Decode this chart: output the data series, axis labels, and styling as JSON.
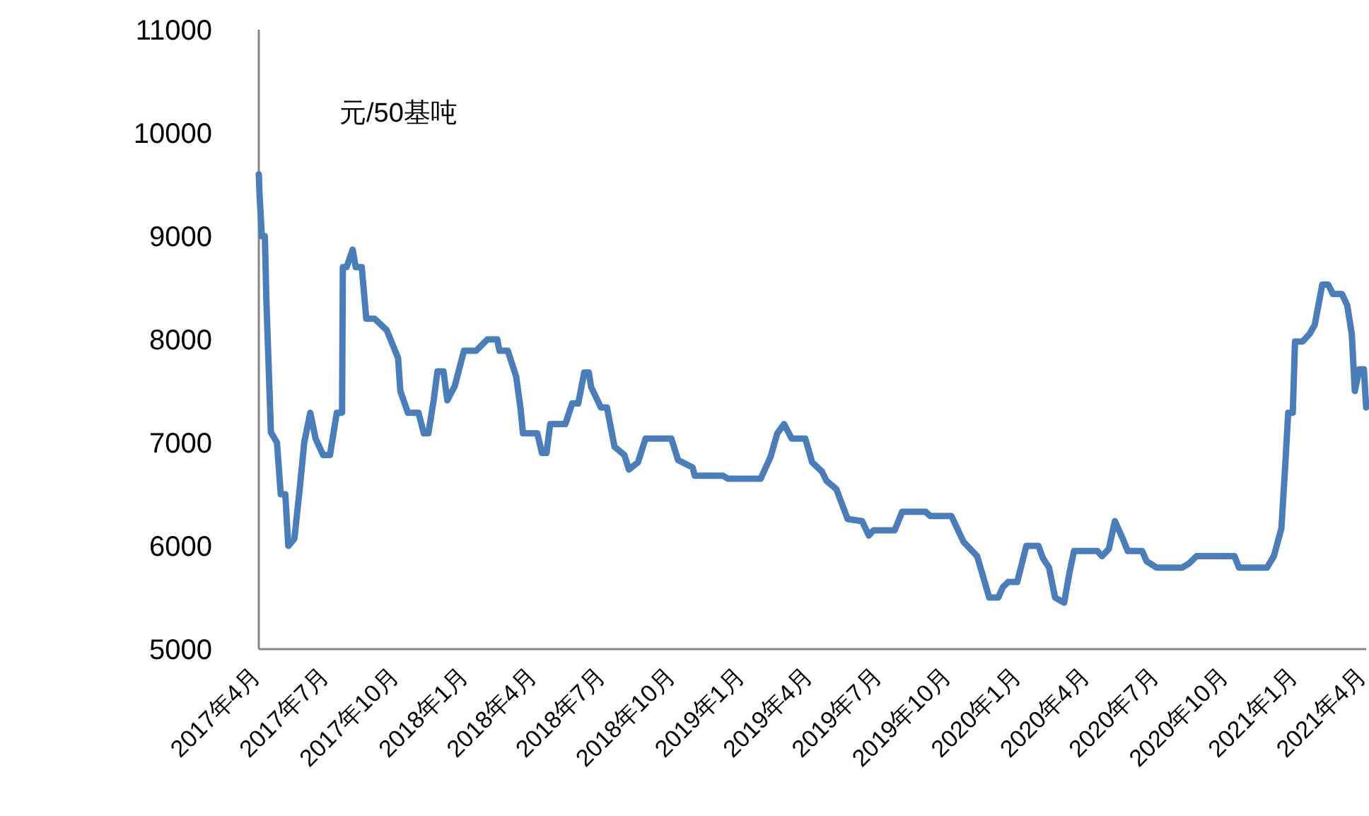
{
  "chart_data": {
    "type": "line",
    "ylabel": "元/50基吨",
    "xlim": [
      "2017-04-01",
      "2021-04-03"
    ],
    "ylim": [
      5000,
      11000
    ],
    "yticks": [
      5000,
      6000,
      7000,
      8000,
      9000,
      10000,
      11000
    ],
    "xticks": [
      {
        "value": "2017-04-01",
        "label": "2017年4月"
      },
      {
        "value": "2017-07-01",
        "label": "2017年7月"
      },
      {
        "value": "2017-10-01",
        "label": "2017年10月"
      },
      {
        "value": "2018-01-01",
        "label": "2018年1月"
      },
      {
        "value": "2018-04-01",
        "label": "2018年4月"
      },
      {
        "value": "2018-07-01",
        "label": "2018年7月"
      },
      {
        "value": "2018-10-01",
        "label": "2018年10月"
      },
      {
        "value": "2019-01-01",
        "label": "2019年1月"
      },
      {
        "value": "2019-04-01",
        "label": "2019年4月"
      },
      {
        "value": "2019-07-01",
        "label": "2019年7月"
      },
      {
        "value": "2019-10-01",
        "label": "2019年10月"
      },
      {
        "value": "2020-01-01",
        "label": "2020年1月"
      },
      {
        "value": "2020-04-01",
        "label": "2020年4月"
      },
      {
        "value": "2020-07-01",
        "label": "2020年7月"
      },
      {
        "value": "2020-10-01",
        "label": "2020年10月"
      },
      {
        "value": "2021-01-01",
        "label": "2021年1月"
      },
      {
        "value": "2021-04-01",
        "label": "2021年4月"
      }
    ],
    "grid": false,
    "marker": "none",
    "line_style": "solid",
    "series": [
      {
        "color": "#4a7ebb",
        "x": [
          "2017-04-01",
          "2017-04-02",
          "2017-04-05",
          "2017-04-09",
          "2017-04-11",
          "2017-04-17",
          "2017-04-25",
          "2017-04-30",
          "2017-05-06",
          "2017-05-10",
          "2017-05-18",
          "2017-05-25",
          "2017-05-31",
          "2017-06-08",
          "2017-06-15",
          "2017-06-25",
          "2017-07-04",
          "2017-07-13",
          "2017-07-20",
          "2017-07-21",
          "2017-07-26",
          "2017-08-03",
          "2017-08-07",
          "2017-08-15",
          "2017-08-21",
          "2017-09-01",
          "2017-09-17",
          "2017-10-02",
          "2017-10-05",
          "2017-10-15",
          "2017-10-29",
          "2017-11-05",
          "2017-11-11",
          "2017-11-18",
          "2017-11-23",
          "2017-12-01",
          "2017-12-06",
          "2017-12-16",
          "2017-12-28",
          "2018-01-13",
          "2018-01-28",
          "2018-02-10",
          "2018-02-13",
          "2018-02-24",
          "2018-03-07",
          "2018-03-13",
          "2018-03-16",
          "2018-04-04",
          "2018-04-10",
          "2018-04-16",
          "2018-04-21",
          "2018-05-11",
          "2018-05-20",
          "2018-05-28",
          "2018-06-05",
          "2018-06-11",
          "2018-06-14",
          "2018-06-27",
          "2018-07-05",
          "2018-07-15",
          "2018-07-28",
          "2018-08-03",
          "2018-08-15",
          "2018-08-25",
          "2018-09-28",
          "2018-10-07",
          "2018-10-26",
          "2018-10-29",
          "2018-12-05",
          "2018-12-12",
          "2019-01-24",
          "2019-02-06",
          "2019-02-15",
          "2019-02-24",
          "2019-03-06",
          "2019-03-24",
          "2019-04-02",
          "2019-04-15",
          "2019-04-21",
          "2019-05-04",
          "2019-05-19",
          "2019-06-07",
          "2019-06-16",
          "2019-06-22",
          "2019-07-20",
          "2019-07-30",
          "2019-08-30",
          "2019-09-05",
          "2019-10-03",
          "2019-10-19",
          "2019-11-06",
          "2019-11-22",
          "2019-12-04",
          "2019-12-10",
          "2019-12-17",
          "2019-12-29",
          "2020-01-10",
          "2020-01-26",
          "2020-02-01",
          "2020-02-09",
          "2020-02-17",
          "2020-02-29",
          "2020-03-07",
          "2020-03-13",
          "2020-04-13",
          "2020-04-19",
          "2020-04-28",
          "2020-05-06",
          "2020-05-17",
          "2020-05-23",
          "2020-06-11",
          "2020-06-17",
          "2020-06-30",
          "2020-08-03",
          "2020-08-12",
          "2020-08-22",
          "2020-10-11",
          "2020-10-17",
          "2020-11-23",
          "2020-12-02",
          "2020-12-12",
          "2020-12-17",
          "2020-12-21",
          "2020-12-27",
          "2020-12-30",
          "2021-01-09",
          "2021-01-18",
          "2021-01-25",
          "2021-02-04",
          "2021-02-12",
          "2021-02-18",
          "2021-03-02",
          "2021-03-09",
          "2021-03-15",
          "2021-03-19",
          "2021-03-25",
          "2021-03-31",
          "2021-04-03"
        ],
        "values": [
          9600,
          9400,
          9000,
          9000,
          8380,
          7100,
          7000,
          6500,
          6500,
          6000,
          6070,
          6550,
          7000,
          7290,
          7040,
          6880,
          6880,
          7290,
          7290,
          8700,
          8700,
          8870,
          8700,
          8700,
          8200,
          8200,
          8090,
          7820,
          7500,
          7290,
          7290,
          7090,
          7090,
          7410,
          7690,
          7690,
          7410,
          7550,
          7890,
          7890,
          8000,
          8000,
          7890,
          7890,
          7640,
          7320,
          7090,
          7090,
          6900,
          6900,
          7180,
          7180,
          7380,
          7380,
          7680,
          7680,
          7540,
          7340,
          7340,
          6960,
          6880,
          6740,
          6810,
          7040,
          7040,
          6830,
          6760,
          6680,
          6680,
          6650,
          6650,
          6860,
          7090,
          7180,
          7040,
          7040,
          6810,
          6720,
          6630,
          6550,
          6260,
          6240,
          6100,
          6150,
          6150,
          6330,
          6330,
          6290,
          6290,
          6040,
          5900,
          5500,
          5500,
          5600,
          5650,
          5650,
          6000,
          6000,
          5880,
          5790,
          5500,
          5450,
          5740,
          5950,
          5950,
          5900,
          5970,
          6240,
          6060,
          5950,
          5950,
          5850,
          5790,
          5790,
          5830,
          5900,
          5900,
          5790,
          5790,
          5900,
          6170,
          6770,
          7290,
          7290,
          7980,
          7980,
          8050,
          8140,
          8530,
          8530,
          8440,
          8440,
          8330,
          8050,
          7500,
          7710,
          7710,
          7340
        ]
      }
    ]
  }
}
